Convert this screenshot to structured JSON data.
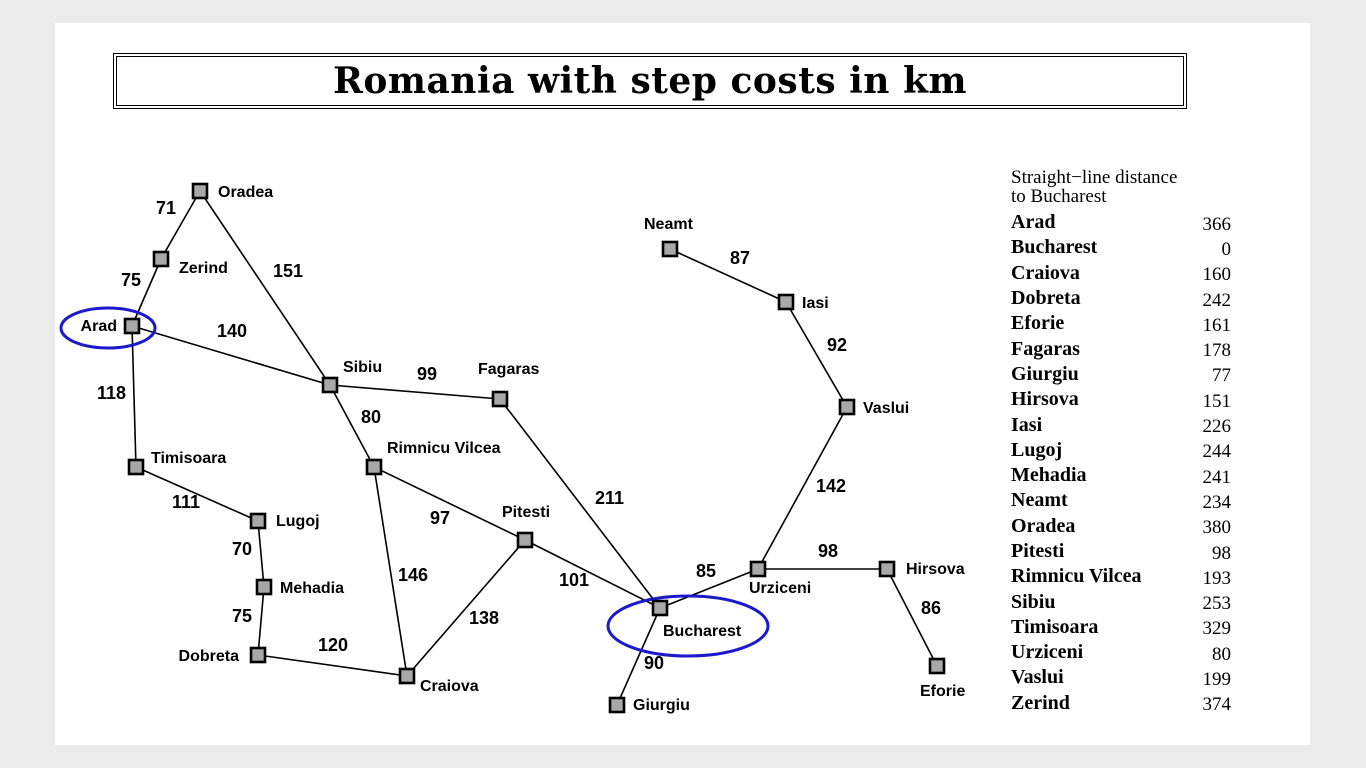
{
  "title": "Romania with step costs in km",
  "highlight_color": "#1a1acc",
  "node_fill": "#a8a8a8",
  "cities": [
    {
      "id": "oradea",
      "name": "Oradea"
    },
    {
      "id": "zerind",
      "name": "Zerind"
    },
    {
      "id": "arad",
      "name": "Arad"
    },
    {
      "id": "sibiu",
      "name": "Sibiu"
    },
    {
      "id": "fagaras",
      "name": "Fagaras"
    },
    {
      "id": "timisoara",
      "name": "Timisoara"
    },
    {
      "id": "lugoj",
      "name": "Lugoj"
    },
    {
      "id": "mehadia",
      "name": "Mehadia"
    },
    {
      "id": "dobreta",
      "name": "Dobreta"
    },
    {
      "id": "craiova",
      "name": "Craiova"
    },
    {
      "id": "rimnicu",
      "name": "Rimnicu Vilcea"
    },
    {
      "id": "pitesti",
      "name": "Pitesti"
    },
    {
      "id": "bucharest",
      "name": "Bucharest"
    },
    {
      "id": "giurgiu",
      "name": "Giurgiu"
    },
    {
      "id": "urziceni",
      "name": "Urziceni"
    },
    {
      "id": "hirsova",
      "name": "Hirsova"
    },
    {
      "id": "eforie",
      "name": "Eforie"
    },
    {
      "id": "vaslui",
      "name": "Vaslui"
    },
    {
      "id": "iasi",
      "name": "Iasi"
    },
    {
      "id": "neamt",
      "name": "Neamt"
    }
  ],
  "roads": [
    {
      "from": "oradea",
      "to": "zerind",
      "cost": "71"
    },
    {
      "from": "zerind",
      "to": "arad",
      "cost": "75"
    },
    {
      "from": "oradea",
      "to": "sibiu",
      "cost": "151"
    },
    {
      "from": "arad",
      "to": "sibiu",
      "cost": "140"
    },
    {
      "from": "arad",
      "to": "timisoara",
      "cost": "118"
    },
    {
      "from": "sibiu",
      "to": "fagaras",
      "cost": "99"
    },
    {
      "from": "sibiu",
      "to": "rimnicu",
      "cost": "80"
    },
    {
      "from": "timisoara",
      "to": "lugoj",
      "cost": "111"
    },
    {
      "from": "lugoj",
      "to": "mehadia",
      "cost": "70"
    },
    {
      "from": "mehadia",
      "to": "dobreta",
      "cost": "75"
    },
    {
      "from": "dobreta",
      "to": "craiova",
      "cost": "120"
    },
    {
      "from": "rimnicu",
      "to": "craiova",
      "cost": "146"
    },
    {
      "from": "rimnicu",
      "to": "pitesti",
      "cost": "97"
    },
    {
      "from": "craiova",
      "to": "pitesti",
      "cost": "138"
    },
    {
      "from": "fagaras",
      "to": "bucharest",
      "cost": "211"
    },
    {
      "from": "pitesti",
      "to": "bucharest",
      "cost": "101"
    },
    {
      "from": "bucharest",
      "to": "giurgiu",
      "cost": "90"
    },
    {
      "from": "bucharest",
      "to": "urziceni",
      "cost": "85"
    },
    {
      "from": "urziceni",
      "to": "hirsova",
      "cost": "98"
    },
    {
      "from": "hirsova",
      "to": "eforie",
      "cost": "86"
    },
    {
      "from": "urziceni",
      "to": "vaslui",
      "cost": "142"
    },
    {
      "from": "vaslui",
      "to": "iasi",
      "cost": "92"
    },
    {
      "from": "iasi",
      "to": "neamt",
      "cost": "87"
    }
  ],
  "highlighted_cities": [
    "arad",
    "bucharest"
  ],
  "sld_table": {
    "header_line1": "Straight−line distance",
    "header_line2": "to Bucharest",
    "rows": [
      {
        "city": "Arad",
        "distance": "366"
      },
      {
        "city": "Bucharest",
        "distance": "0"
      },
      {
        "city": "Craiova",
        "distance": "160"
      },
      {
        "city": "Dobreta",
        "distance": "242"
      },
      {
        "city": "Eforie",
        "distance": "161"
      },
      {
        "city": "Fagaras",
        "distance": "178"
      },
      {
        "city": "Giurgiu",
        "distance": "77"
      },
      {
        "city": "Hirsova",
        "distance": "151"
      },
      {
        "city": "Iasi",
        "distance": "226"
      },
      {
        "city": "Lugoj",
        "distance": "244"
      },
      {
        "city": "Mehadia",
        "distance": "241"
      },
      {
        "city": "Neamt",
        "distance": "234"
      },
      {
        "city": "Oradea",
        "distance": "380"
      },
      {
        "city": "Pitesti",
        "distance": "98"
      },
      {
        "city": "Rimnicu Vilcea",
        "distance": "193"
      },
      {
        "city": "Sibiu",
        "distance": "253"
      },
      {
        "city": "Timisoara",
        "distance": "329"
      },
      {
        "city": "Urziceni",
        "distance": "80"
      },
      {
        "city": "Vaslui",
        "distance": "199"
      },
      {
        "city": "Zerind",
        "distance": "374"
      }
    ]
  }
}
